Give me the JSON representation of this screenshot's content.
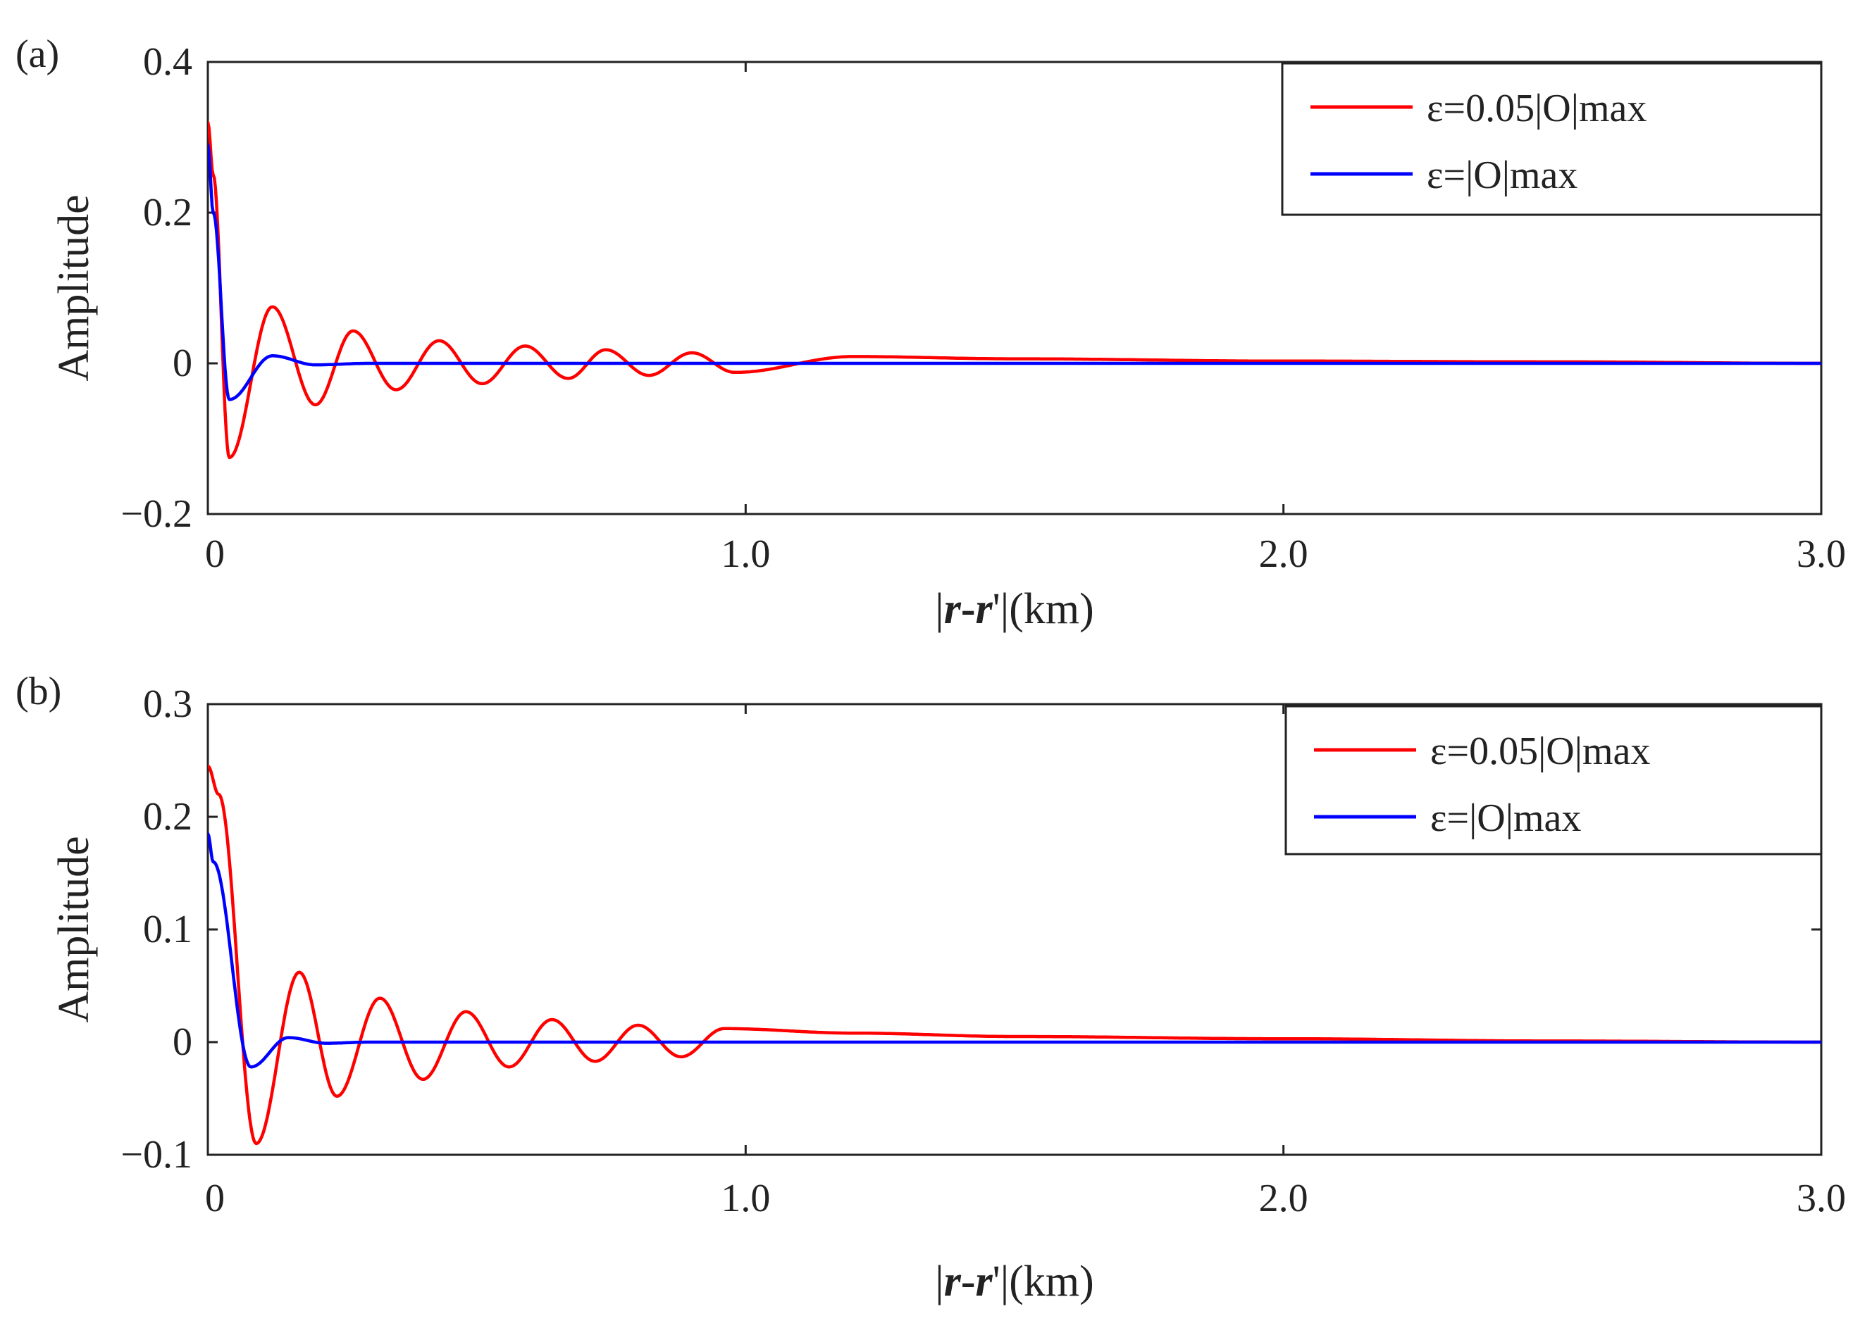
{
  "chart_data": [
    {
      "type": "line",
      "panel_label": "(a)",
      "ylabel": "Amplitude",
      "xlabel_parts": [
        "|",
        "r",
        "-",
        "r",
        "'|(km)"
      ],
      "xlim": [
        0,
        3.0
      ],
      "ylim": [
        -0.2,
        0.4
      ],
      "x_ticks": [
        0,
        1.0,
        2.0,
        3.0
      ],
      "x_tick_labels": [
        "0",
        "1.0",
        "2.0",
        "3.0"
      ],
      "y_ticks": [
        -0.2,
        0,
        0.2,
        0.4
      ],
      "y_tick_labels": [
        "−0.2",
        "0",
        "0.2",
        "0.4"
      ],
      "legend_position": "top-right",
      "series": [
        {
          "name": "ε=0.05|O|max",
          "color": "#ff0000",
          "model": "damped-oscillation",
          "x": [
            0,
            0.01,
            0.04,
            0.12,
            0.2,
            0.27,
            0.35,
            0.43,
            0.51,
            0.59,
            0.67,
            0.74,
            0.82,
            0.9,
            0.98,
            1.2,
            1.5,
            2.0,
            2.5,
            3.0
          ],
          "y": [
            0.32,
            0.25,
            -0.125,
            0.075,
            -0.055,
            0.043,
            -0.035,
            0.03,
            -0.027,
            0.023,
            -0.02,
            0.018,
            -0.016,
            0.014,
            -0.012,
            0.009,
            0.006,
            0.003,
            0.002,
            0.0
          ]
        },
        {
          "name": "ε=|O|max",
          "color": "#0000ff",
          "model": "damped-oscillation",
          "x": [
            0,
            0.01,
            0.04,
            0.12,
            0.2,
            0.3,
            0.5,
            1.0,
            2.0,
            3.0
          ],
          "y": [
            0.29,
            0.2,
            -0.048,
            0.01,
            -0.002,
            0.0,
            0.0,
            0.0,
            0.0,
            0.0
          ]
        }
      ]
    },
    {
      "type": "line",
      "panel_label": "(b)",
      "ylabel": "Amplitude",
      "xlabel_parts": [
        "|",
        "r",
        "-",
        "r",
        "'|(km)"
      ],
      "xlim": [
        0,
        3.0
      ],
      "ylim": [
        -0.1,
        0.3
      ],
      "x_ticks": [
        0,
        1.0,
        2.0,
        3.0
      ],
      "x_tick_labels": [
        "0",
        "1.0",
        "2.0",
        "3.0"
      ],
      "y_ticks": [
        -0.1,
        0,
        0.1,
        0.2,
        0.3
      ],
      "y_tick_labels": [
        "−0.1",
        "0",
        "0.1",
        "0.2",
        "0.3"
      ],
      "legend_position": "top-right",
      "series": [
        {
          "name": "ε=0.05|O|max",
          "color": "#ff0000",
          "model": "damped-oscillation",
          "x": [
            0,
            0.02,
            0.09,
            0.17,
            0.24,
            0.32,
            0.4,
            0.48,
            0.56,
            0.64,
            0.72,
            0.8,
            0.88,
            0.96,
            1.2,
            1.5,
            2.0,
            2.5,
            3.0
          ],
          "y": [
            0.245,
            0.22,
            -0.09,
            0.062,
            -0.048,
            0.039,
            -0.033,
            0.027,
            -0.022,
            0.02,
            -0.017,
            0.015,
            -0.013,
            0.012,
            0.008,
            0.005,
            0.003,
            0.001,
            0.0
          ]
        },
        {
          "name": "ε=|O|max",
          "color": "#0000ff",
          "model": "damped-oscillation",
          "x": [
            0,
            0.01,
            0.08,
            0.15,
            0.22,
            0.3,
            0.5,
            1.0,
            2.0,
            3.0
          ],
          "y": [
            0.185,
            0.16,
            -0.022,
            0.004,
            -0.001,
            0.0,
            0.0,
            0.0,
            0.0,
            0.0
          ]
        }
      ]
    }
  ]
}
